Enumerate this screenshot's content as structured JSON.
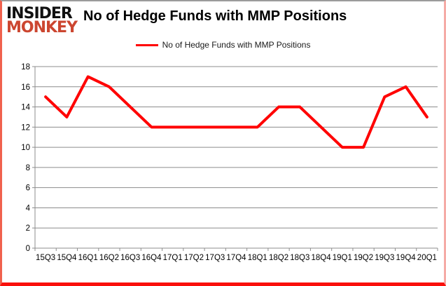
{
  "branding": {
    "line1": "INSIDER",
    "line2": "MONKEY",
    "monkey_color": "#cc4630"
  },
  "header": {
    "title": "No of Hedge Funds with MMP Positions"
  },
  "legend": {
    "label": "No of Hedge Funds with MMP Positions",
    "line_color": "#ff0000"
  },
  "chart_data": {
    "type": "line",
    "title": "No of Hedge Funds with MMP Positions",
    "categories": [
      "15Q3",
      "15Q4",
      "16Q1",
      "16Q2",
      "16Q3",
      "16Q4",
      "17Q1",
      "17Q2",
      "17Q3",
      "17Q4",
      "18Q1",
      "18Q2",
      "18Q3",
      "18Q4",
      "19Q1",
      "19Q2",
      "19Q3",
      "19Q4",
      "20Q1"
    ],
    "series": [
      {
        "name": "No of Hedge Funds with MMP Positions",
        "color": "#ff0000",
        "values": [
          15,
          13,
          17,
          16,
          14,
          12,
          12,
          12,
          12,
          12,
          12,
          14,
          14,
          12,
          10,
          10,
          15,
          16,
          13
        ]
      }
    ],
    "xlabel": "",
    "ylabel": "",
    "ylim": [
      0,
      18
    ],
    "ytick_step": 2,
    "yticks": [
      0,
      2,
      4,
      6,
      8,
      10,
      12,
      14,
      16,
      18
    ],
    "grid": true,
    "gridline_color": "#8c8c8c",
    "axis_color": "#8c8c8c",
    "tick_label_color": "#000000",
    "legend_position": "top-center"
  }
}
